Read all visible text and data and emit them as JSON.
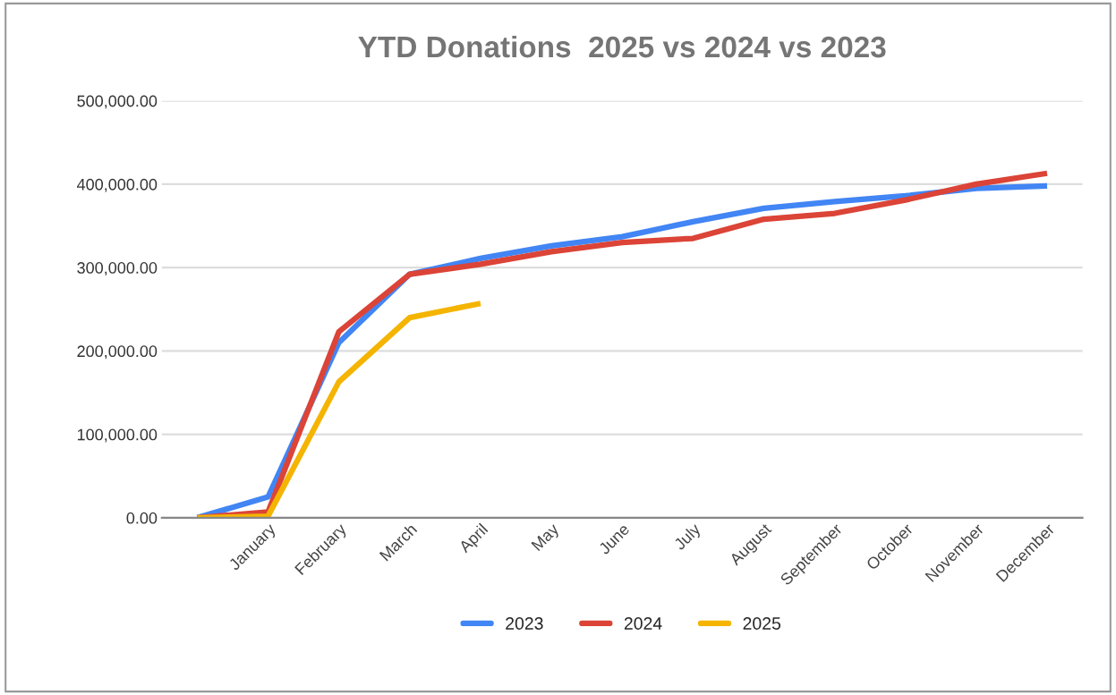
{
  "chart_data": {
    "type": "line",
    "title": "YTD Donations  2025 vs 2024 vs 2023",
    "categories": [
      null,
      "January",
      "February",
      "March",
      "April",
      "May",
      "June",
      "July",
      "August",
      "September",
      "October",
      "November",
      "December"
    ],
    "series": [
      {
        "name": "2023",
        "color": "#4285f4",
        "values": [
          0,
          25000,
          210000,
          292000,
          311000,
          326000,
          337000,
          355000,
          371000,
          379000,
          386000,
          395000,
          398000
        ]
      },
      {
        "name": "2024",
        "color": "#db4437",
        "values": [
          0,
          7000,
          223000,
          292000,
          304000,
          319000,
          330000,
          335000,
          358000,
          365000,
          381000,
          400000,
          413000
        ]
      },
      {
        "name": "2025",
        "color": "#f4b400",
        "values": [
          0,
          2000,
          163000,
          240000,
          257000,
          null,
          null,
          null,
          null,
          null,
          null,
          null,
          null
        ]
      }
    ],
    "ylim": [
      0,
      500000
    ],
    "yticks": [
      {
        "value": 0,
        "label": "0.00"
      },
      {
        "value": 100000,
        "label": "100,000.00"
      },
      {
        "value": 200000,
        "label": "200,000.00"
      },
      {
        "value": 300000,
        "label": "300,000.00"
      },
      {
        "value": 400000,
        "label": "400,000.00"
      },
      {
        "value": 500000,
        "label": "500,000.00"
      }
    ],
    "grid": "y",
    "legend": "bottom",
    "marker": "none",
    "line_style": "solid"
  }
}
